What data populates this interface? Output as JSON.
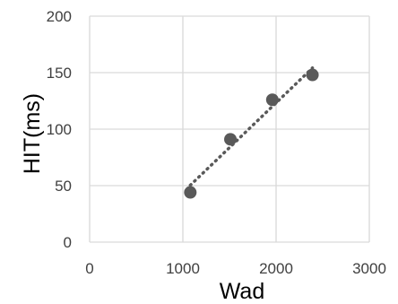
{
  "chart_data": {
    "type": "scatter",
    "title": "",
    "xlabel": "Wad",
    "ylabel": "HIT(ms)",
    "xlim": [
      0,
      3000
    ],
    "ylim": [
      0,
      200
    ],
    "x_ticks": [
      0,
      1000,
      2000,
      3000
    ],
    "y_ticks": [
      0,
      50,
      100,
      150,
      200
    ],
    "grid": true,
    "legend": "none",
    "series": [
      {
        "points": [
          {
            "x": 1080,
            "y": 44
          },
          {
            "x": 1510,
            "y": 91
          },
          {
            "x": 1960,
            "y": 126
          },
          {
            "x": 2390,
            "y": 148
          }
        ],
        "color": "#595959",
        "trendline": {
          "style": "dotted",
          "type": "linear",
          "color": "#595959"
        }
      }
    ]
  }
}
